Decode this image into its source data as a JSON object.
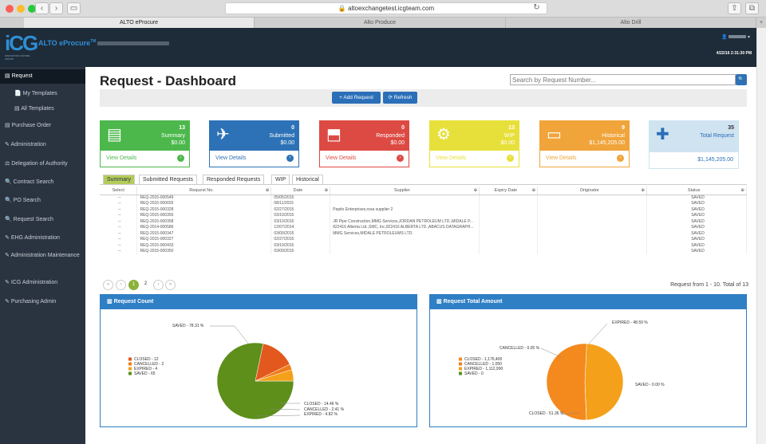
{
  "browser": {
    "url": "altoexchangetest.icgteam.com",
    "tabs": [
      "ALTO eProcure",
      "Alto Produce",
      "Alto Drill"
    ]
  },
  "header": {
    "logo_text": "iCG",
    "logo_sub": "INNOVATION CENTRE GROUP",
    "app_name": "ALTO eProcure",
    "trademark": "TM",
    "datetime": "4/22/16 2:31:30 PM"
  },
  "sidebar": {
    "items": [
      {
        "label": "Request"
      },
      {
        "label": "My Templates"
      },
      {
        "label": "All Templates"
      },
      {
        "label": "Purchase Order"
      },
      {
        "label": "Administration"
      },
      {
        "label": "Delegation of Authority"
      },
      {
        "label": "Contract Search"
      },
      {
        "label": "PO Search"
      },
      {
        "label": "Request Search"
      },
      {
        "label": "EHG Administration"
      },
      {
        "label": "Administration Maintenance"
      },
      {
        "label": "ICG Administration"
      },
      {
        "label": "Purchasing Admin"
      }
    ]
  },
  "main": {
    "title": "Request - Dashboard",
    "search_placeholder": "Search by Request Number...",
    "add_label": "+ Add Request",
    "refresh_label": "Refresh"
  },
  "cards": [
    {
      "count": "13",
      "label": "Summary",
      "amount": "$0.00",
      "link": "View Details",
      "color": "#4cb84c"
    },
    {
      "count": "0",
      "label": "Submitted",
      "amount": "$0.00",
      "link": "View Details",
      "color": "#2d72b6"
    },
    {
      "count": "0",
      "label": "Responded",
      "amount": "$0.00",
      "link": "View Details",
      "color": "#dd4a43"
    },
    {
      "count": "13",
      "label": "WIP",
      "amount": "$0.00",
      "link": "View Details",
      "color": "#e8e03a"
    },
    {
      "count": "9",
      "label": "Historical",
      "amount": "$1,145,205.00",
      "link": "View Details",
      "color": "#f0a43a"
    },
    {
      "count": "35",
      "label": "Total Request",
      "amount": "$1,145,205.00",
      "color": "#cfe3f1"
    }
  ],
  "subtabs": [
    "Summary",
    "Submitted Requests",
    "Responded Requests",
    "WIP",
    "Historical"
  ],
  "table": {
    "headers": [
      "Select",
      "Request No.",
      "Date",
      "Supplier",
      "Expiry Date",
      "Originator",
      "Status"
    ],
    "rows": [
      [
        "--",
        "REQ-2015-000549",
        "05/05/2015",
        "",
        "",
        "",
        "SAVED"
      ],
      [
        "--",
        "REQ-2015-000655",
        "08/11/2015",
        "",
        "",
        "",
        "SAVED"
      ],
      [
        "--",
        "REQ-2015-000328",
        "02/27/2015",
        "Pepito Enterprises,rosa supplier 2",
        "",
        "",
        "SAVED"
      ],
      [
        "--",
        "REQ-2015-000355",
        "03/10/2015",
        "",
        "",
        "",
        "SAVED"
      ],
      [
        "--",
        "REQ-2015-000358",
        "03/10/2015",
        "JR Pipe Construction,MMG Services,JORDAN PETROLEUM LTD.,MIDALE P...",
        "",
        "",
        "SAVED"
      ],
      [
        "--",
        "REQ-2014-000586",
        "12/07/2014",
        "822416 Alberta Ltd.,SMC, Inc,822416 ALBERTA LTD.,ABACUS DATAGRAPH...",
        "",
        "",
        "SAVED"
      ],
      [
        "--",
        "REQ-2015-000347",
        "03/09/2015",
        "MMG Services,MIDALE PETROLEUMS LTD.",
        "",
        "",
        "SAVED"
      ],
      [
        "--",
        "REQ-2015-000327",
        "02/27/2015",
        "",
        "",
        "",
        "SAVED"
      ],
      [
        "--",
        "REQ-2015-000433",
        "03/19/2015",
        "",
        "",
        "",
        "SAVED"
      ],
      [
        "--",
        "REQ-2015-000350",
        "03/09/2015",
        "",
        "",
        "",
        "SAVED"
      ]
    ]
  },
  "pagination": {
    "pages": [
      "1",
      "2"
    ],
    "summary": "Request from 1 - 10. Total of 13"
  },
  "charts": {
    "count_title": "Request Count",
    "amount_title": "Request Total Amount"
  },
  "chart_data": [
    {
      "type": "pie",
      "title": "Request Count",
      "categories": [
        "SAVED",
        "CLOSED",
        "CANCELLED",
        "EXPIRED"
      ],
      "values": [
        78.31,
        14.46,
        2.41,
        4.82
      ],
      "legend": [
        "CLOSED - 12",
        "CANCELLED - 2",
        "EXPIRED - 4",
        "SAVED - 65"
      ],
      "slice_labels": [
        "SAVED - 78.31 %",
        "CLOSED - 14.46 %",
        "CANCELLED - 2.41 %",
        "EXPIRED - 4.82 %"
      ],
      "colors": {
        "SAVED": "#5d8f1a",
        "CLOSED": "#e3581c",
        "CANCELLED": "#f07d1a",
        "EXPIRED": "#f4a01a"
      }
    },
    {
      "type": "pie",
      "title": "Request Total Amount",
      "categories": [
        "EXPIRED",
        "CANCELLED",
        "SAVED",
        "CLOSED"
      ],
      "values": [
        48.59,
        0.05,
        0.0,
        51.36
      ],
      "legend": [
        "CLOSED - 1,176,400",
        "CANCELLED - 1,050",
        "EXPIRED - 1,112,990",
        "SAVED - 0"
      ],
      "slice_labels": [
        "EXPIRED - 48.59 %",
        "CANCELLED - 0.05 %",
        "SAVED - 0.00 %",
        "CLOSED - 51.36 %"
      ],
      "colors": {
        "CLOSED": "#f4891e",
        "CANCELLED": "#f07d1a",
        "EXPIRED": "#f4a01a",
        "SAVED": "#5d8f1a"
      }
    }
  ]
}
